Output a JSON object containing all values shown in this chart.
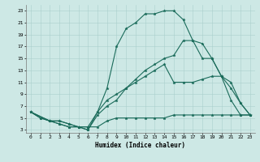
{
  "xlabel": "Humidex (Indice chaleur)",
  "ylabel": "",
  "bg_color": "#cde8e5",
  "grid_color": "#aacfcc",
  "line_color": "#1a6b5a",
  "xlim": [
    -0.5,
    23.5
  ],
  "ylim": [
    2.5,
    24
  ],
  "xticks": [
    0,
    1,
    2,
    3,
    4,
    5,
    6,
    7,
    8,
    9,
    10,
    11,
    12,
    13,
    14,
    15,
    16,
    17,
    18,
    19,
    20,
    21,
    22,
    23
  ],
  "yticks": [
    3,
    5,
    7,
    9,
    11,
    13,
    15,
    17,
    19,
    21,
    23
  ],
  "series": [
    {
      "x": [
        0,
        1,
        2,
        3,
        4,
        5,
        6,
        7,
        8,
        9,
        10,
        11,
        12,
        13,
        14,
        15,
        16,
        17,
        18,
        19,
        20,
        21,
        22,
        23
      ],
      "y": [
        6,
        5,
        4.5,
        4.5,
        4,
        3.5,
        3.5,
        3.5,
        4.5,
        5,
        5,
        5,
        5,
        5,
        5,
        5.5,
        5.5,
        5.5,
        5.5,
        5.5,
        5.5,
        5.5,
        5.5,
        5.5
      ]
    },
    {
      "x": [
        0,
        2,
        3,
        4,
        5,
        6,
        7,
        8,
        9,
        10,
        11,
        12,
        13,
        14,
        15,
        16,
        17,
        18,
        19,
        20,
        21,
        22,
        23
      ],
      "y": [
        6,
        4.5,
        4,
        3.5,
        3.5,
        3,
        6,
        8,
        9,
        10,
        11,
        12,
        13,
        14,
        11,
        11,
        11,
        11.5,
        12,
        12,
        11,
        7.5,
        5.5
      ]
    },
    {
      "x": [
        0,
        2,
        3,
        4,
        5,
        6,
        7,
        8,
        9,
        10,
        11,
        12,
        13,
        14,
        15,
        16,
        17,
        18,
        19,
        20,
        21,
        22,
        23
      ],
      "y": [
        6,
        4.5,
        4,
        3.5,
        3.5,
        3,
        5.5,
        7,
        8,
        10,
        11.5,
        13,
        14,
        15,
        15.5,
        18,
        18,
        17.5,
        15,
        12,
        10,
        7.5,
        5.5
      ]
    },
    {
      "x": [
        0,
        1,
        2,
        3,
        4,
        5,
        6,
        7,
        8,
        9,
        10,
        11,
        12,
        13,
        14,
        15,
        16,
        17,
        18,
        19,
        20,
        21,
        22,
        23
      ],
      "y": [
        6,
        5,
        4.5,
        4.5,
        4,
        3.5,
        3.5,
        6,
        10,
        17,
        20,
        21,
        22.5,
        22.5,
        23,
        23,
        21.5,
        18,
        15,
        15,
        12,
        8,
        5.5,
        5.5
      ]
    }
  ]
}
